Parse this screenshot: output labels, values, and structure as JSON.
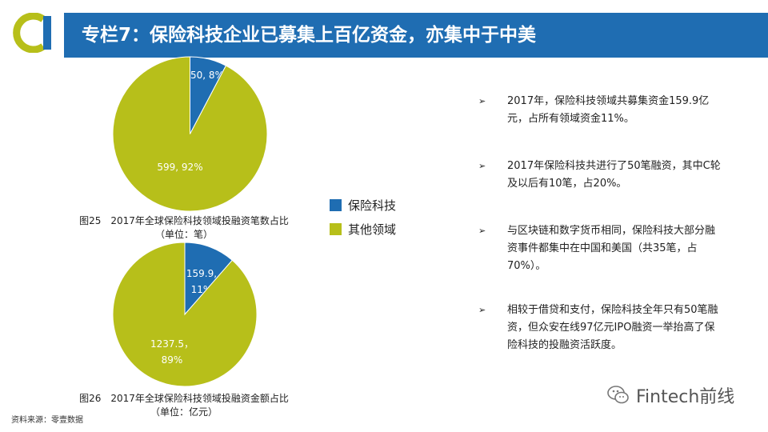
{
  "header": {
    "title": "专栏7：保险科技企业已募集上百亿资金，亦集中于中美"
  },
  "chart_data": [
    {
      "type": "pie",
      "title": "图25　2017年全球保险科技领域投融资笔数占比",
      "subtitle": "（单位：笔）",
      "categories": [
        "保险科技",
        "其他领域"
      ],
      "values": [
        50,
        599
      ],
      "percents": [
        8,
        92
      ],
      "labels": [
        "50, 8%",
        "599, 92%"
      ],
      "colors": [
        "#1f6db2",
        "#b7bf1a"
      ]
    },
    {
      "type": "pie",
      "title": "图26　2017年全球保险科技领域投融资金额占比",
      "subtitle": "（单位：亿元）",
      "categories": [
        "保险科技",
        "其他领域"
      ],
      "values": [
        159.9,
        1237.5
      ],
      "percents": [
        11,
        89
      ],
      "labels": [
        [
          "159.9,",
          "11%"
        ],
        [
          "1237.5，",
          "89%"
        ]
      ],
      "colors": [
        "#1f6db2",
        "#b7bf1a"
      ]
    }
  ],
  "legend": {
    "items": [
      {
        "label": "保险科技",
        "color": "#1f6db2"
      },
      {
        "label": "其他领域",
        "color": "#b7bf1a"
      }
    ]
  },
  "bullets": [
    {
      "marker": "➢",
      "lines": [
        "2017年，保险科技领域共募集资金159.9亿",
        "元，占所有领域资金11%。"
      ]
    },
    {
      "marker": "➢",
      "lines": [
        "2017年保险科技共进行了50笔融资，其中C轮",
        "及以后有10笔，占20%。"
      ]
    },
    {
      "marker": "➢",
      "lines": [
        "与区块链和数字货币相同，保险科技大部分融",
        "资事件都集中在中国和美国（共35笔，占",
        "70%）。"
      ]
    },
    {
      "marker": "➢",
      "lines": [
        "相较于借贷和支付，保险科技全年只有50笔融",
        "资，但众安在线97亿元IPO融资一举抬高了保",
        "险科技的投融资活跃度。"
      ]
    }
  ],
  "source": "资料来源：零壹数据",
  "watermark": "Fintech前线",
  "colors": {
    "brand_blue": "#1f6db2",
    "accent_green": "#b7bf1a"
  }
}
